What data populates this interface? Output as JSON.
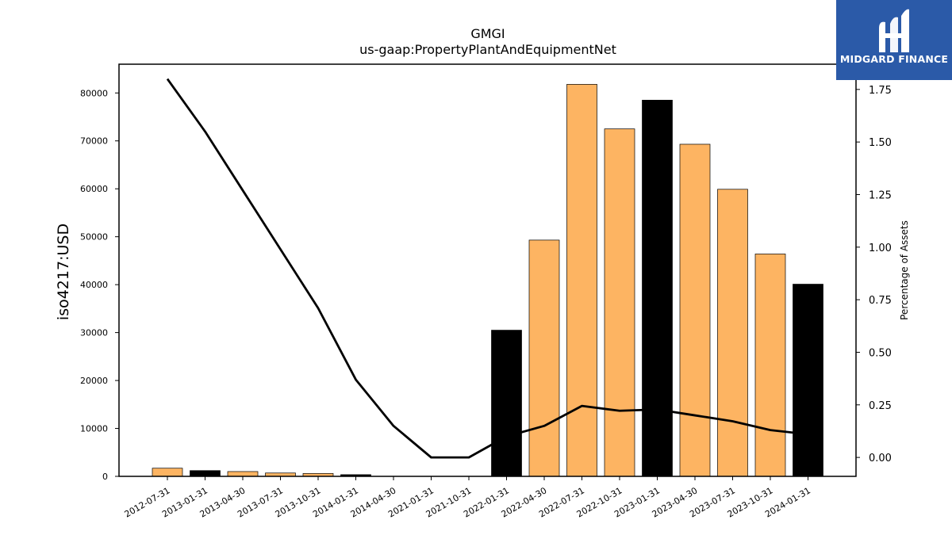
{
  "chart_data": {
    "type": "bar",
    "title": "GMGI",
    "subtitle": "us-gaap:PropertyPlantAndEquipmentNet",
    "ylabel": "iso4217:USD",
    "ylabel_right": "Percentage of Assets",
    "categories": [
      "2012-07-31",
      "2013-01-31",
      "2013-04-30",
      "2013-07-31",
      "2013-10-31",
      "2014-01-31",
      "2014-04-30",
      "2021-01-31",
      "2021-10-31",
      "2022-01-31",
      "2022-04-30",
      "2022-07-31",
      "2022-10-31",
      "2023-01-31",
      "2023-04-30",
      "2023-07-31",
      "2023-10-31",
      "2024-01-31"
    ],
    "series": [
      {
        "values": [
          1700,
          1200,
          1000,
          700,
          600,
          350,
          0,
          0,
          0,
          30500,
          49300,
          81800,
          72500,
          78500,
          69300,
          59900,
          46400,
          40100
        ],
        "colors": [
          "#fdb462",
          "#000000",
          "#fdb462",
          "#fdb462",
          "#fdb462",
          "#000000",
          "#fdb462",
          "#fdb462",
          "#fdb462",
          "#000000",
          "#fdb462",
          "#fdb462",
          "#fdb462",
          "#000000",
          "#fdb462",
          "#fdb462",
          "#fdb462",
          "#000000"
        ]
      },
      {
        "axis": "right",
        "type": "line",
        "values": [
          1.8,
          1.55,
          1.27,
          0.99,
          0.71,
          0.37,
          0.15,
          0.0,
          0.0,
          0.1,
          0.15,
          0.245,
          0.222,
          0.228,
          0.2,
          0.172,
          0.13,
          0.11
        ]
      }
    ],
    "ylim": [
      0,
      86000
    ],
    "ylim_right": [
      -0.09,
      1.87
    ],
    "yticks": [
      0,
      10000,
      20000,
      30000,
      40000,
      50000,
      60000,
      70000,
      80000
    ],
    "yticks_right": [
      "0.00",
      "0.25",
      "0.50",
      "0.75",
      "1.00",
      "1.25",
      "1.50",
      "1.75"
    ],
    "grid": false
  },
  "logo": {
    "text": "MIDGARD FINANCE"
  }
}
